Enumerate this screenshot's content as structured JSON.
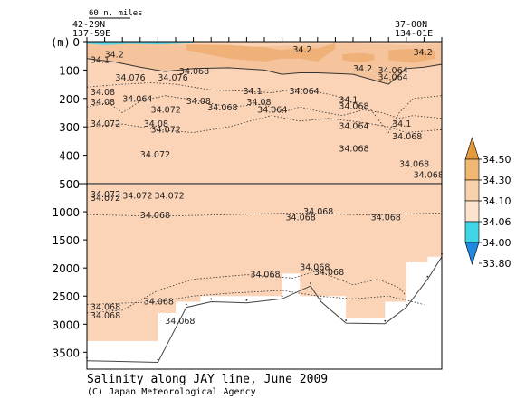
{
  "chart_data": {
    "type": "heatmap",
    "title": "Salinity along JAY line, June 2009",
    "credit": "(C) Japan Meteorological Agency",
    "ylabel": "(m)",
    "scale_label": "60 n. miles",
    "y_ticks_upper": [
      "0",
      "100",
      "200",
      "300",
      "400",
      "500"
    ],
    "y_ticks_lower": [
      "1000",
      "1500",
      "2000",
      "2500",
      "3000",
      "3500"
    ],
    "y_upper_range": [
      0,
      500
    ],
    "y_lower_range": [
      500,
      3800
    ],
    "x_range": [
      0,
      100
    ],
    "stations": {
      "left": {
        "lat": "42-29N",
        "lon": "137-59E"
      },
      "right": {
        "lat": "37-00N",
        "lon": "134-01E"
      }
    },
    "colorbar": {
      "levels": [
        "34.50",
        "34.30",
        "34.10",
        "34.06",
        "34.00",
        "33.80"
      ],
      "colors": [
        "#e59a3c",
        "#f0b872",
        "#f7d2ac",
        "#fbe3cf",
        "#3fd6e6",
        "#2088e0"
      ]
    },
    "background_color": "#fbd3b6",
    "upper_layers": [
      {
        "color": "#f5c49c",
        "top": [
          [
            0,
            6
          ],
          [
            20,
            6
          ],
          [
            40,
            20
          ],
          [
            60,
            12
          ],
          [
            75,
            8
          ],
          [
            90,
            12
          ],
          [
            100,
            8
          ]
        ],
        "bottom": [
          [
            0,
            60
          ],
          [
            8,
            72
          ],
          [
            15,
            90
          ],
          [
            22,
            105
          ],
          [
            30,
            95
          ],
          [
            40,
            92
          ],
          [
            50,
            100
          ],
          [
            55,
            115
          ],
          [
            60,
            110
          ],
          [
            65,
            110
          ],
          [
            75,
            115
          ],
          [
            85,
            150
          ],
          [
            90,
            95
          ],
          [
            95,
            90
          ],
          [
            100,
            80
          ]
        ]
      },
      {
        "color": "#efb178",
        "top": [
          [
            28,
            10
          ],
          [
            40,
            12
          ],
          [
            50,
            20
          ],
          [
            55,
            30
          ],
          [
            60,
            20
          ],
          [
            65,
            25
          ],
          [
            70,
            5
          ]
        ],
        "bottom": [
          [
            28,
            30
          ],
          [
            40,
            60
          ],
          [
            50,
            70
          ],
          [
            55,
            60
          ],
          [
            60,
            60
          ],
          [
            65,
            70
          ],
          [
            70,
            25
          ]
        ]
      },
      {
        "color": "#efb178",
        "top": [
          [
            72,
            45
          ],
          [
            77,
            40
          ],
          [
            81,
            45
          ]
        ],
        "bottom": [
          [
            72,
            65
          ],
          [
            77,
            75
          ],
          [
            81,
            65
          ]
        ]
      },
      {
        "color": "#efb178",
        "top": [
          [
            85,
            30
          ],
          [
            92,
            25
          ],
          [
            98,
            32
          ]
        ],
        "bottom": [
          [
            85,
            65
          ],
          [
            92,
            75
          ],
          [
            98,
            60
          ]
        ]
      },
      {
        "color": "#4fd8e6",
        "top": [
          [
            0,
            0
          ],
          [
            30,
            0
          ]
        ],
        "bottom": [
          [
            0,
            8
          ],
          [
            5,
            12
          ],
          [
            12,
            8
          ],
          [
            20,
            10
          ],
          [
            30,
            6
          ]
        ]
      }
    ],
    "upper_contours": [
      {
        "dash": false,
        "points": [
          [
            0,
            60
          ],
          [
            8,
            72
          ],
          [
            15,
            90
          ],
          [
            22,
            105
          ],
          [
            30,
            95
          ],
          [
            40,
            92
          ],
          [
            50,
            100
          ],
          [
            55,
            115
          ],
          [
            60,
            110
          ],
          [
            65,
            110
          ],
          [
            75,
            115
          ],
          [
            85,
            150
          ],
          [
            90,
            95
          ],
          [
            95,
            90
          ],
          [
            100,
            80
          ]
        ]
      },
      {
        "dash": true,
        "points": [
          [
            0,
            230
          ],
          [
            6,
            215
          ],
          [
            10,
            250
          ],
          [
            15,
            210
          ],
          [
            22,
            190
          ],
          [
            30,
            205
          ],
          [
            40,
            230
          ],
          [
            50,
            220
          ],
          [
            55,
            250
          ],
          [
            60,
            230
          ],
          [
            65,
            245
          ],
          [
            72,
            260
          ],
          [
            78,
            240
          ],
          [
            83,
            250
          ],
          [
            88,
            270
          ],
          [
            92,
            260
          ],
          [
            100,
            270
          ]
        ]
      },
      {
        "dash": true,
        "points": [
          [
            0,
            160
          ],
          [
            10,
            150
          ],
          [
            18,
            145
          ],
          [
            25,
            150
          ],
          [
            35,
            170
          ],
          [
            45,
            175
          ],
          [
            52,
            180
          ],
          [
            60,
            165
          ],
          [
            70,
            190
          ],
          [
            80,
            240
          ],
          [
            85,
            320
          ],
          [
            88,
            250
          ],
          [
            92,
            200
          ],
          [
            100,
            190
          ]
        ]
      },
      {
        "dash": true,
        "points": [
          [
            0,
            300
          ],
          [
            10,
            290
          ],
          [
            20,
            310
          ],
          [
            30,
            320
          ],
          [
            40,
            300
          ],
          [
            52,
            260
          ],
          [
            60,
            280
          ],
          [
            68,
            270
          ],
          [
            78,
            285
          ],
          [
            85,
            300
          ],
          [
            90,
            320
          ],
          [
            100,
            310
          ]
        ]
      }
    ],
    "upper_labels": [
      {
        "text": "34.2",
        "x": 58,
        "y": 28
      },
      {
        "text": "34.2",
        "x": 92,
        "y": 38
      },
      {
        "text": "34.2",
        "x": 75,
        "y": 96
      },
      {
        "text": "34.2",
        "x": 5,
        "y": 46
      },
      {
        "text": "34.1",
        "x": 1,
        "y": 65
      },
      {
        "text": "34.064",
        "x": 82,
        "y": 102
      },
      {
        "text": "34.064",
        "x": 82,
        "y": 125
      },
      {
        "text": "34.068",
        "x": 26,
        "y": 105
      },
      {
        "text": "34.076",
        "x": 8,
        "y": 128
      },
      {
        "text": "34.076",
        "x": 20,
        "y": 128
      },
      {
        "text": "34.08",
        "x": 1,
        "y": 178
      },
      {
        "text": "34.1",
        "x": 44,
        "y": 175
      },
      {
        "text": "34.064",
        "x": 57,
        "y": 175
      },
      {
        "text": "34.08",
        "x": 1,
        "y": 213
      },
      {
        "text": "34.064",
        "x": 10,
        "y": 203
      },
      {
        "text": "34.08",
        "x": 28,
        "y": 210
      },
      {
        "text": "34.08",
        "x": 45,
        "y": 213
      },
      {
        "text": "34.1",
        "x": 71,
        "y": 205
      },
      {
        "text": "34.068",
        "x": 71,
        "y": 228
      },
      {
        "text": "34.072",
        "x": 18,
        "y": 240
      },
      {
        "text": "34.068",
        "x": 34,
        "y": 232
      },
      {
        "text": "34.064",
        "x": 48,
        "y": 240
      },
      {
        "text": "34.072",
        "x": 1,
        "y": 290
      },
      {
        "text": "34.072",
        "x": 18,
        "y": 310
      },
      {
        "text": "34.08",
        "x": 16,
        "y": 290
      },
      {
        "text": "34.064",
        "x": 71,
        "y": 298
      },
      {
        "text": "34.1",
        "x": 86,
        "y": 290
      },
      {
        "text": "34.068",
        "x": 86,
        "y": 335
      },
      {
        "text": "34.072",
        "x": 15,
        "y": 398
      },
      {
        "text": "34.068",
        "x": 71,
        "y": 378
      },
      {
        "text": "34.068",
        "x": 88,
        "y": 432
      },
      {
        "text": "34.068",
        "x": 92,
        "y": 470
      }
    ],
    "lower_contours": [
      {
        "dash": true,
        "points": [
          [
            0,
            1050
          ],
          [
            20,
            1080
          ],
          [
            40,
            1050
          ],
          [
            60,
            1020
          ],
          [
            80,
            1060
          ],
          [
            100,
            1020
          ]
        ]
      },
      {
        "dash": true,
        "points": [
          [
            0,
            2800
          ],
          [
            10,
            2750
          ],
          [
            20,
            2400
          ],
          [
            30,
            2200
          ],
          [
            45,
            2120
          ],
          [
            58,
            2180
          ],
          [
            65,
            2050
          ],
          [
            75,
            2300
          ],
          [
            82,
            2200
          ],
          [
            88,
            2350
          ],
          [
            90,
            2500
          ]
        ]
      },
      {
        "dash": true,
        "points": [
          [
            0,
            2650
          ],
          [
            20,
            2600
          ],
          [
            30,
            2500
          ],
          [
            40,
            2450
          ],
          [
            55,
            2400
          ],
          [
            65,
            2500
          ],
          [
            75,
            2550
          ],
          [
            85,
            2500
          ],
          [
            95,
            2650
          ]
        ]
      }
    ],
    "lower_labels": [
      {
        "text": "34.072",
        "x": 1,
        "y": 690
      },
      {
        "text": "34.072",
        "x": 1,
        "y": 760
      },
      {
        "text": "34.072",
        "x": 10,
        "y": 720
      },
      {
        "text": "34.072",
        "x": 19,
        "y": 720
      },
      {
        "text": "34.068",
        "x": 15,
        "y": 1060
      },
      {
        "text": "34.068",
        "x": 56,
        "y": 1100
      },
      {
        "text": "34.068",
        "x": 61,
        "y": 1000
      },
      {
        "text": "34.068",
        "x": 80,
        "y": 1100
      },
      {
        "text": "34.068",
        "x": 60,
        "y": 1990
      },
      {
        "text": "34.068",
        "x": 64,
        "y": 2080
      },
      {
        "text": "34.068",
        "x": 46,
        "y": 2120
      },
      {
        "text": "34.068",
        "x": 16,
        "y": 2600
      },
      {
        "text": "34.068",
        "x": 1,
        "y": 2700
      },
      {
        "text": "34.068",
        "x": 1,
        "y": 2850
      },
      {
        "text": "34.068",
        "x": 22,
        "y": 2950
      }
    ],
    "white_regions": [
      [
        [
          0,
          500
        ],
        [
          100,
          500
        ],
        [
          100,
          520
        ],
        [
          0,
          520
        ]
      ],
      [
        [
          0,
          3300
        ],
        [
          0,
          3800
        ],
        [
          100,
          3800
        ],
        [
          100,
          1800
        ],
        [
          96,
          1800
        ],
        [
          96,
          1900
        ],
        [
          90,
          1900
        ],
        [
          90,
          2600
        ],
        [
          84,
          2600
        ],
        [
          84,
          2900
        ],
        [
          73,
          2900
        ],
        [
          73,
          2500
        ],
        [
          60,
          2500
        ],
        [
          60,
          2100
        ],
        [
          55,
          2100
        ],
        [
          55,
          2500
        ],
        [
          32,
          2500
        ],
        [
          32,
          2600
        ],
        [
          25,
          2600
        ],
        [
          25,
          2800
        ],
        [
          20,
          2800
        ],
        [
          20,
          3300
        ]
      ]
    ],
    "bottom_line": [
      [
        0,
        3650
      ],
      [
        20,
        3680
      ],
      [
        28,
        2700
      ],
      [
        35,
        2600
      ],
      [
        45,
        2620
      ],
      [
        55,
        2550
      ],
      [
        63,
        2320
      ],
      [
        66,
        2600
      ],
      [
        73,
        2980
      ],
      [
        84,
        2990
      ],
      [
        90,
        2700
      ],
      [
        96,
        2200
      ],
      [
        100,
        1800
      ]
    ],
    "station_x": [
      0,
      5,
      10,
      15,
      20,
      25,
      30,
      35,
      40,
      45,
      50,
      55,
      60,
      65,
      70,
      75,
      80,
      85,
      90,
      95,
      100
    ]
  }
}
